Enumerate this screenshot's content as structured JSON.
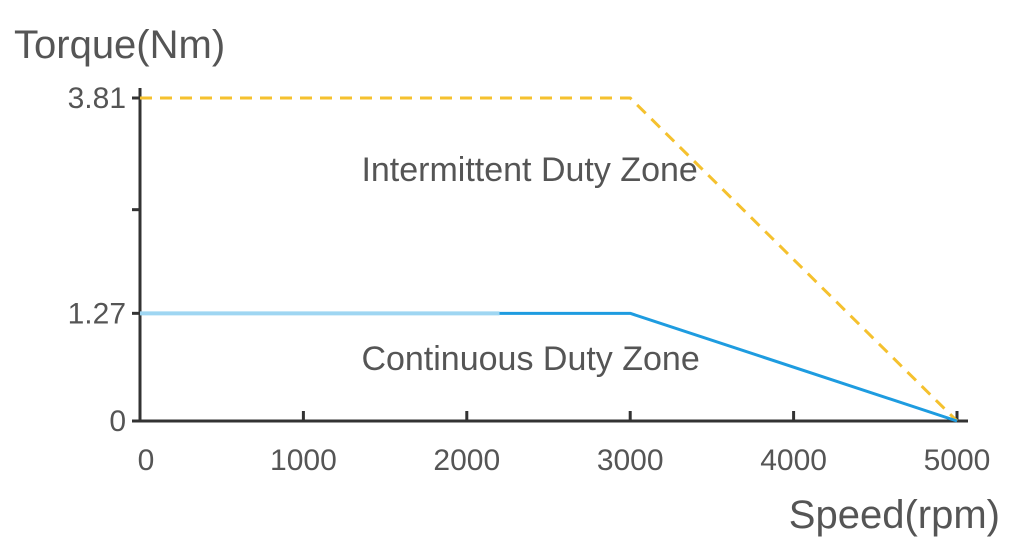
{
  "chart_data": {
    "type": "line",
    "title": "",
    "xlabel": "Speed(rpm)",
    "ylabel": "Torque(Nm)",
    "xlim": [
      0,
      5000
    ],
    "ylim": [
      0,
      3.81
    ],
    "x_ticks": [
      0,
      1000,
      2000,
      3000,
      4000,
      5000
    ],
    "x_tick_labels": [
      "0",
      "1000",
      "2000",
      "3000",
      "4000",
      "5000"
    ],
    "y_ticks": [
      0,
      1.27,
      3.81
    ],
    "y_tick_labels": [
      "0",
      "1.27",
      "3.81"
    ],
    "grid": false,
    "series": [
      {
        "name": "Intermittent Duty Zone",
        "style": "dashed",
        "color": "#f5c12e",
        "x": [
          0,
          3000,
          5000
        ],
        "y": [
          3.81,
          3.81,
          0
        ]
      },
      {
        "name": "Continuous Duty Zone",
        "style": "solid",
        "color": "#1e9ce0",
        "x": [
          0,
          3000,
          5000
        ],
        "y": [
          1.27,
          1.27,
          0
        ]
      }
    ],
    "annotations": [
      {
        "text": "Intermittent Duty Zone",
        "x": 1600,
        "y": 2.95
      },
      {
        "text": "Continuous Duty Zone",
        "x": 1600,
        "y": 0.72
      }
    ]
  }
}
